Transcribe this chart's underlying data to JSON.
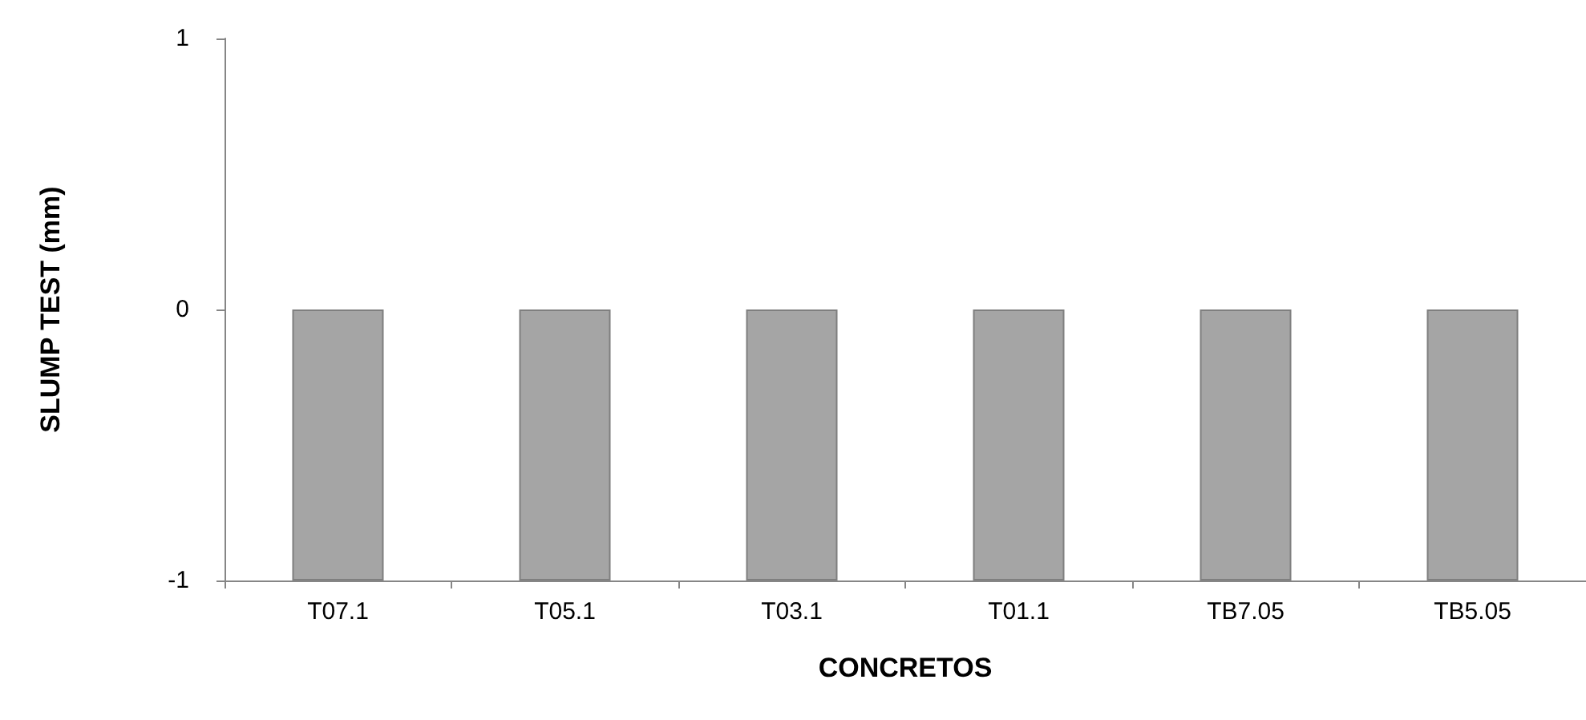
{
  "chart_data": {
    "type": "bar",
    "xlabel": "CONCRETOS",
    "ylabel": "SLUMP TEST (mm)",
    "categories": [
      "T07.1",
      "T05.1",
      "T03.1",
      "T01.1",
      "TB7.05",
      "TB5.05"
    ],
    "values": [
      -1,
      -1,
      -1,
      -1,
      -1,
      -1
    ],
    "color": "#a5a5a5",
    "ylim": [
      -1,
      1
    ],
    "yticks": [
      -1,
      0,
      1
    ]
  }
}
